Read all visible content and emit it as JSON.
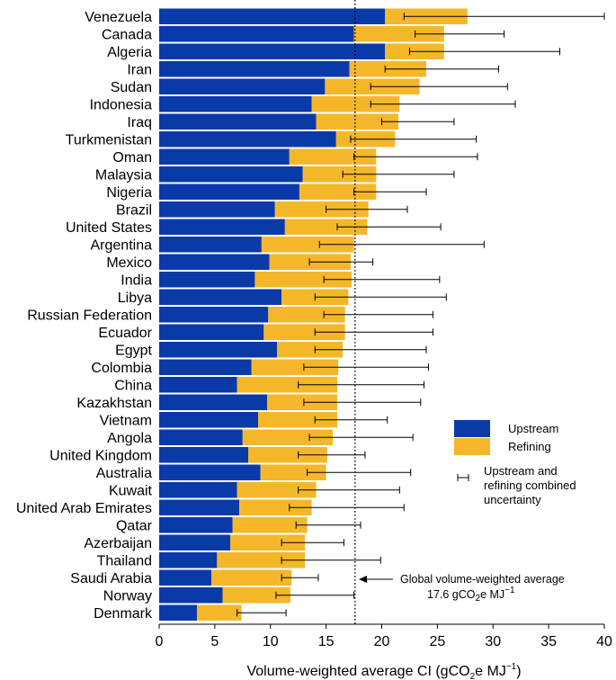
{
  "chart_data": {
    "type": "bar",
    "orientation": "horizontal",
    "stacked": true,
    "xlabel_parts": {
      "main": "Volume-weighted average CI (gCO",
      "sub": "2",
      "mid": "e MJ",
      "sup": "−1",
      "end": ")"
    },
    "xlim": [
      0,
      40
    ],
    "xticks": [
      0,
      5,
      10,
      15,
      20,
      25,
      30,
      35,
      40
    ],
    "reference_value": 17.6,
    "categories": [
      "Venezuela",
      "Canada",
      "Algeria",
      "Iran",
      "Sudan",
      "Indonesia",
      "Iraq",
      "Turkmenistan",
      "Oman",
      "Malaysia",
      "Nigeria",
      "Brazil",
      "United States",
      "Argentina",
      "Mexico",
      "India",
      "Libya",
      "Russian Federation",
      "Ecuador",
      "Egypt",
      "Colombia",
      "China",
      "Kazakhstan",
      "Vietnam",
      "Angola",
      "United Kingdom",
      "Australia",
      "Kuwait",
      "United Arab Emirates",
      "Qatar",
      "Azerbaijan",
      "Thailand",
      "Saudi Arabia",
      "Norway",
      "Denmark"
    ],
    "series": [
      {
        "name": "Upstream",
        "color": "#0a3aa8",
        "values": [
          20.3,
          17.5,
          20.3,
          17.1,
          14.9,
          13.7,
          14.1,
          15.9,
          11.7,
          12.9,
          12.6,
          10.4,
          11.3,
          9.2,
          9.9,
          8.6,
          11.0,
          9.8,
          9.4,
          10.6,
          8.3,
          7.0,
          9.7,
          8.9,
          7.5,
          8.0,
          9.1,
          7.0,
          7.2,
          6.6,
          6.4,
          5.2,
          4.7,
          5.7,
          3.4
        ]
      },
      {
        "name": "Refining",
        "color": "#f5b72a",
        "values": [
          7.4,
          8.1,
          5.3,
          6.9,
          8.5,
          7.9,
          7.4,
          5.3,
          7.8,
          6.6,
          6.9,
          8.4,
          7.4,
          8.3,
          7.3,
          8.7,
          6.0,
          6.9,
          7.3,
          5.9,
          7.8,
          9.0,
          6.3,
          7.1,
          8.1,
          7.1,
          5.9,
          7.1,
          6.5,
          6.7,
          6.7,
          7.9,
          7.2,
          6.1,
          4.0
        ]
      }
    ],
    "error_bars": {
      "low": [
        22.0,
        23.0,
        22.5,
        20.3,
        19.0,
        19.0,
        20.0,
        17.2,
        17.5,
        16.5,
        17.5,
        15.0,
        16.0,
        14.4,
        13.5,
        14.8,
        14.0,
        14.8,
        14.0,
        14.0,
        13.0,
        12.5,
        13.0,
        14.0,
        13.5,
        12.5,
        13.3,
        12.5,
        11.7,
        12.3,
        11.0,
        11.0,
        11.0,
        10.5,
        7.0
      ],
      "high": [
        40.0,
        31.0,
        36.0,
        30.5,
        31.3,
        32.0,
        26.5,
        28.5,
        28.6,
        26.5,
        24.0,
        22.3,
        25.3,
        29.2,
        19.2,
        25.2,
        25.8,
        24.6,
        24.6,
        24.0,
        24.2,
        23.8,
        23.5,
        20.5,
        22.8,
        18.5,
        22.6,
        21.6,
        22.0,
        18.1,
        16.6,
        19.9,
        14.3,
        17.5,
        11.4
      ]
    },
    "legend": {
      "items": [
        "Upstream",
        "Refining"
      ],
      "uncertainty_lines": [
        "Upstream and",
        "refining combined",
        "uncertainty"
      ],
      "placement": "right-middle"
    },
    "annotation": {
      "line1": "Global volume-weighted average",
      "line2_main": "17.6 gCO",
      "line2_sub": "2",
      "line2_mid": "e MJ",
      "line2_sup": "−1"
    }
  }
}
